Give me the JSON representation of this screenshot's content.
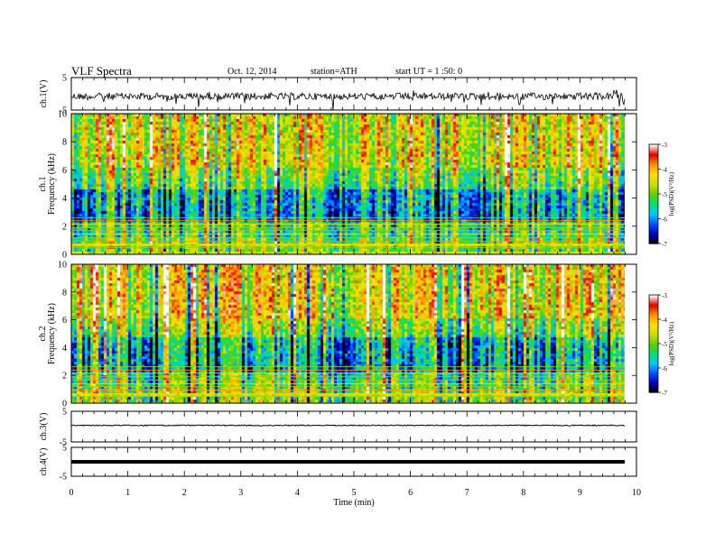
{
  "header": {
    "title": "VLF  Spectra",
    "date": "Oct. 12, 2014",
    "station": "station=ATH",
    "start": "start  UT  =  1 :50: 0"
  },
  "chart_data": [
    {
      "type": "line",
      "panel": "ch1-waveform",
      "ylabel": "ch.1(V)",
      "yticks": [
        "5",
        "-5"
      ],
      "ylim": [
        -5,
        5
      ],
      "level": -0.8,
      "noise": "high"
    },
    {
      "type": "heatmap",
      "panel": "ch1-spectrogram",
      "ylabel": "ch.1\nFrequency (kHz)",
      "ylabel_lines": [
        "ch.1",
        "Frequency (kHz)"
      ],
      "yticks": [
        "0",
        "2",
        "4",
        "6",
        "8",
        "10"
      ],
      "ylim": [
        0,
        10
      ],
      "colorbar": {
        "label": "log(PSD)(V²/Hz)",
        "ticks": [
          "-3",
          "-4",
          "-5",
          "-6",
          "-7"
        ],
        "range": [
          -7,
          -3
        ]
      }
    },
    {
      "type": "heatmap",
      "panel": "ch2-spectrogram",
      "ylabel": "ch.2\nFrequency (kHz)",
      "ylabel_lines": [
        "ch.2",
        "Frequency (kHz)"
      ],
      "yticks": [
        "0",
        "2",
        "4",
        "6",
        "8",
        "10"
      ],
      "ylim": [
        0,
        10
      ],
      "colorbar": {
        "label": "log(PSD)(V²/Hz)",
        "ticks": [
          "-3",
          "-4",
          "-5",
          "-6",
          "-7"
        ],
        "range": [
          -7,
          -3
        ]
      }
    },
    {
      "type": "line",
      "panel": "ch3-waveform",
      "ylabel": "ch.3(V)",
      "yticks": [
        "5",
        "-5"
      ],
      "ylim": [
        -5,
        5
      ],
      "level": 0.4,
      "noise": "low"
    },
    {
      "type": "line",
      "panel": "ch4-waveform",
      "ylabel": "ch.4(V)",
      "yticks": [
        "5",
        "-5"
      ],
      "ylim": [
        -5,
        5
      ],
      "level": 0.0,
      "noise": "flat-thick"
    }
  ],
  "xaxis": {
    "label": "Time  (min)",
    "ticks": [
      "0",
      "1",
      "2",
      "3",
      "4",
      "5",
      "6",
      "7",
      "8",
      "9",
      "10"
    ],
    "xlim": [
      0,
      10
    ],
    "data_end": 9.8
  },
  "colors": {
    "scale": [
      "#000000",
      "#0000c0",
      "#0050ff",
      "#00c8ff",
      "#00e070",
      "#60d000",
      "#c8e000",
      "#ffe000",
      "#ff9000",
      "#e00000",
      "#ffffff"
    ]
  }
}
